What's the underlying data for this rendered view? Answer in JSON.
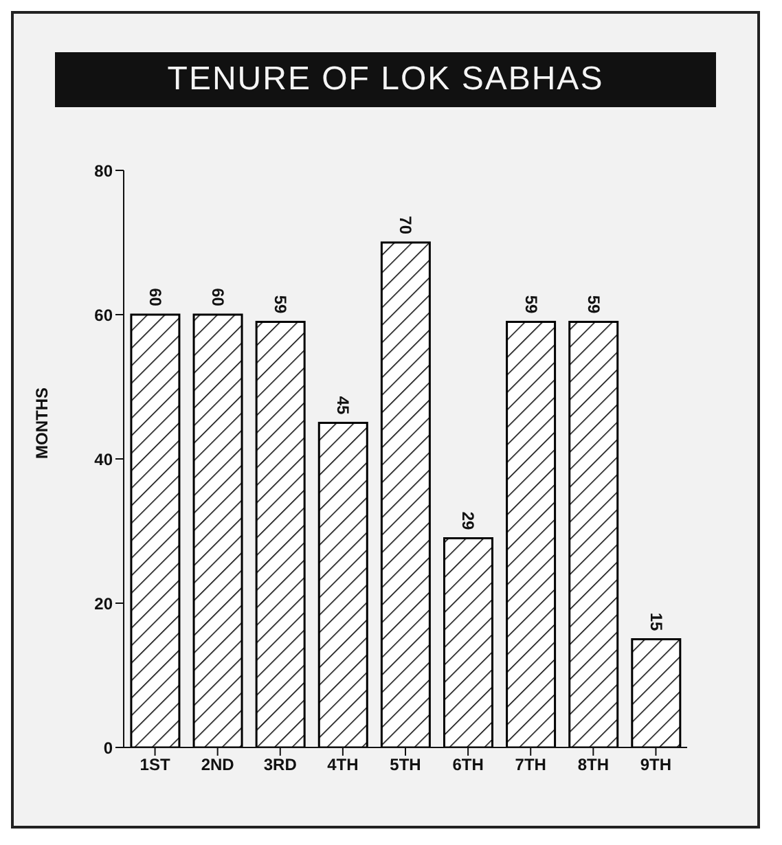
{
  "chart_data": {
    "type": "bar",
    "title": "TENURE OF LOK SABHAS",
    "ylabel": "MONTHS",
    "categories": [
      "1ST",
      "2ND",
      "3RD",
      "4TH",
      "5TH",
      "6TH",
      "7TH",
      "8TH",
      "9TH"
    ],
    "values": [
      60,
      60,
      59,
      45,
      70,
      29,
      59,
      59,
      15
    ],
    "color": "#000000",
    "ylim": [
      0,
      80
    ],
    "yticks": [
      0,
      20,
      40,
      60,
      80
    ],
    "data_labels": true
  }
}
